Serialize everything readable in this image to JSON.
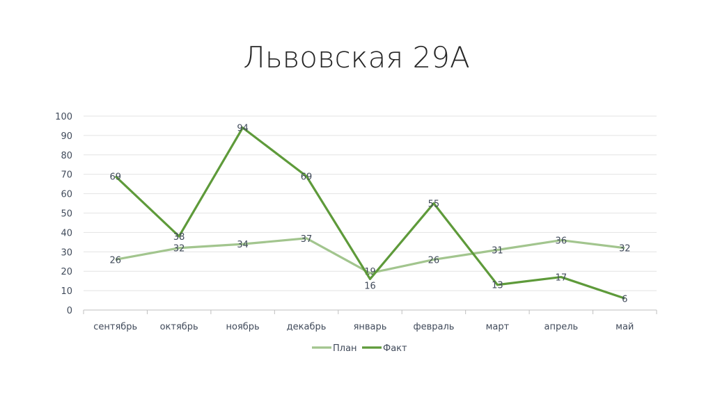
{
  "chart_data": {
    "type": "line",
    "title": "Львовская 29А",
    "categories": [
      "сентябрь",
      "октябрь",
      "ноябрь",
      "декабрь",
      "январь",
      "февраль",
      "март",
      "апрель",
      "май"
    ],
    "series": [
      {
        "name": "План",
        "values": [
          26,
          32,
          34,
          37,
          19,
          26,
          31,
          36,
          32
        ],
        "color": "#a2c58e"
      },
      {
        "name": "Факт",
        "values": [
          69,
          38,
          94,
          69,
          16,
          55,
          13,
          17,
          6
        ],
        "color": "#5e9a3a"
      }
    ],
    "ylim": [
      0,
      100
    ],
    "yticks": [
      0,
      10,
      20,
      30,
      40,
      50,
      60,
      70,
      80,
      90,
      100
    ],
    "grid": true,
    "legend": "bottom",
    "data_labels": true
  }
}
